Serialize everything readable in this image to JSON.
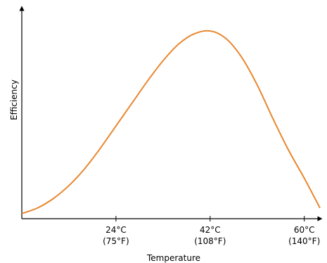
{
  "chart_data": {
    "type": "line",
    "title": "",
    "xlabel": "Temperature",
    "ylabel": "Efficiency",
    "xlim": [
      6,
      63
    ],
    "ylim": [
      0,
      1
    ],
    "grid": false,
    "legend": "none",
    "color": "#e8872f",
    "x_ticks": [
      {
        "value": 24,
        "label": "24°C",
        "sublabel": "(75°F)"
      },
      {
        "value": 42,
        "label": "42°C",
        "sublabel": "(108°F)"
      },
      {
        "value": 60,
        "label": "60°C",
        "sublabel": "(140°F)"
      }
    ],
    "curve": {
      "peak_x": 42,
      "peak_y": 1.0,
      "x": [
        6,
        9,
        12,
        15,
        18,
        21,
        24,
        27,
        30,
        33,
        36,
        39,
        42,
        45,
        48,
        51,
        54,
        57,
        60,
        63
      ],
      "y": [
        0.02,
        0.05,
        0.1,
        0.17,
        0.26,
        0.37,
        0.49,
        0.61,
        0.73,
        0.84,
        0.93,
        0.985,
        1.0,
        0.96,
        0.86,
        0.71,
        0.53,
        0.36,
        0.21,
        0.05
      ]
    }
  }
}
